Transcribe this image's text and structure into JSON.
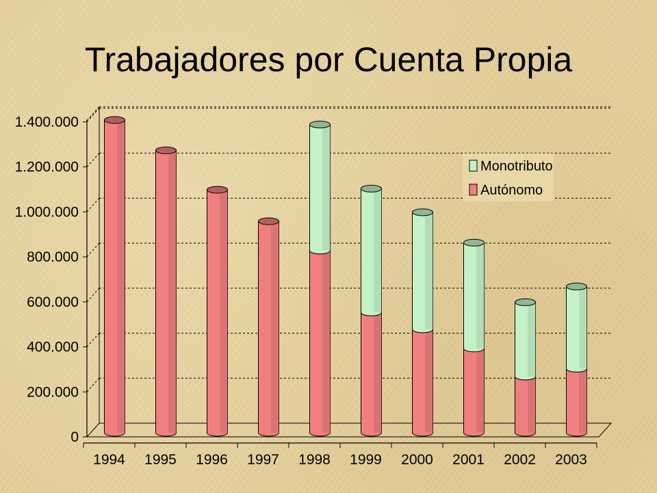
{
  "chart_data": {
    "type": "bar",
    "stacked": true,
    "title": "Trabajadores por Cuenta Propia",
    "categories": [
      "1994",
      "1995",
      "1996",
      "1997",
      "1998",
      "1999",
      "2000",
      "2001",
      "2002",
      "2003"
    ],
    "series": [
      {
        "name": "Autónomo",
        "color": "#f08080",
        "values": [
          1390000,
          1255000,
          1080000,
          940000,
          810000,
          535000,
          460000,
          375000,
          250000,
          285000
        ]
      },
      {
        "name": "Monotributo",
        "color": "#c4f2c8",
        "values": [
          0,
          0,
          0,
          0,
          560000,
          550000,
          520000,
          470000,
          330000,
          365000
        ]
      }
    ],
    "ylim": [
      0,
      1400000
    ],
    "yticks": [
      "0",
      "200.000",
      "400.000",
      "600.000",
      "800.000",
      "1.000.000",
      "1.200.000",
      "1.400.000"
    ],
    "grid": true,
    "legend": "top-right",
    "xlabel": "",
    "ylabel": ""
  }
}
